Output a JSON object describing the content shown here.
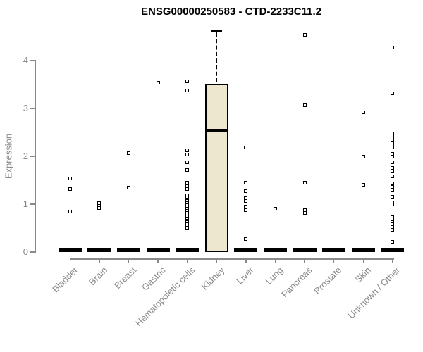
{
  "chart_data": {
    "type": "boxplot",
    "title": "ENSG00000250583 - CTD-2233C11.2",
    "ylabel": "Expression",
    "xlabel": "",
    "yticks": [
      0,
      1,
      2,
      3,
      4
    ],
    "ylim": [
      0,
      4.7
    ],
    "grid": false,
    "legend": "none",
    "colors": {
      "box_fill": "#ECE7CE",
      "box_border": "#000000",
      "median": "#000000",
      "outlier": "#000000",
      "axis": "#898989",
      "tick_text": "#898989",
      "title_text": "#000000"
    },
    "categories": [
      "Bladder",
      "Brain",
      "Breast",
      "Gastric",
      "Hematopoietic cells",
      "Kidney",
      "Liver",
      "Lung",
      "Pancreas",
      "Prostate",
      "Skin",
      "Unknown / Other"
    ],
    "series": [
      {
        "category": "Bladder",
        "q1": 0,
        "median": 0,
        "q3": 0,
        "whisker_low": 0,
        "whisker_high": 0,
        "outliers": [
          1.53,
          1.31,
          0.84
        ]
      },
      {
        "category": "Brain",
        "q1": 0,
        "median": 0,
        "q3": 0,
        "whisker_low": 0,
        "whisker_high": 0,
        "outliers": [
          1.02,
          0.97,
          0.92
        ]
      },
      {
        "category": "Breast",
        "q1": 0,
        "median": 0,
        "q3": 0,
        "whisker_low": 0,
        "whisker_high": 0,
        "outliers": [
          2.06,
          1.34
        ]
      },
      {
        "category": "Gastric",
        "q1": 0,
        "median": 0,
        "q3": 0,
        "whisker_low": 0,
        "whisker_high": 0,
        "outliers": [
          3.54
        ]
      },
      {
        "category": "Hematopoietic cells",
        "q1": 0,
        "median": 0,
        "q3": 0,
        "whisker_low": 0,
        "whisker_high": 0,
        "outliers": [
          3.57,
          3.38,
          2.13,
          2.03,
          1.88,
          1.71,
          1.45,
          1.38,
          1.32,
          1.18,
          1.14,
          1.1,
          1.06,
          1.02,
          0.98,
          0.94,
          0.9,
          0.86,
          0.82,
          0.78,
          0.74,
          0.7,
          0.66,
          0.62,
          0.58,
          0.54,
          0.51
        ]
      },
      {
        "category": "Kidney",
        "q1": 0,
        "median": 2.55,
        "q3": 3.52,
        "whisker_low": 0,
        "whisker_high": 4.63,
        "outliers": []
      },
      {
        "category": "Liver",
        "q1": 0,
        "median": 0,
        "q3": 0,
        "whisker_low": 0,
        "whisker_high": 0,
        "outliers": [
          2.19,
          1.45,
          1.27,
          1.12,
          1.06,
          0.95,
          0.88,
          0.27
        ]
      },
      {
        "category": "Lung",
        "q1": 0,
        "median": 0,
        "q3": 0,
        "whisker_low": 0,
        "whisker_high": 0,
        "outliers": [
          0.9
        ]
      },
      {
        "category": "Pancreas",
        "q1": 0,
        "median": 0,
        "q3": 0,
        "whisker_low": 0,
        "whisker_high": 0,
        "outliers": [
          4.54,
          3.06,
          1.45,
          0.88,
          0.82
        ]
      },
      {
        "category": "Prostate",
        "q1": 0,
        "median": 0,
        "q3": 0,
        "whisker_low": 0,
        "whisker_high": 0,
        "outliers": []
      },
      {
        "category": "Skin",
        "q1": 0,
        "median": 0,
        "q3": 0,
        "whisker_low": 0,
        "whisker_high": 0,
        "outliers": [
          2.92,
          2.0,
          1.41
        ]
      },
      {
        "category": "Unknown / Other",
        "q1": 0,
        "median": 0,
        "q3": 0,
        "whisker_low": 0,
        "whisker_high": 0,
        "outliers": [
          4.27,
          3.32,
          2.48,
          2.43,
          2.38,
          2.33,
          2.28,
          2.23,
          2.18,
          2.05,
          1.99,
          1.87,
          1.76,
          1.68,
          1.58,
          1.43,
          1.36,
          1.29,
          1.16,
          1.04,
          0.99,
          0.73,
          0.68,
          0.63,
          0.58,
          0.52,
          0.46,
          0.22
        ]
      }
    ]
  }
}
